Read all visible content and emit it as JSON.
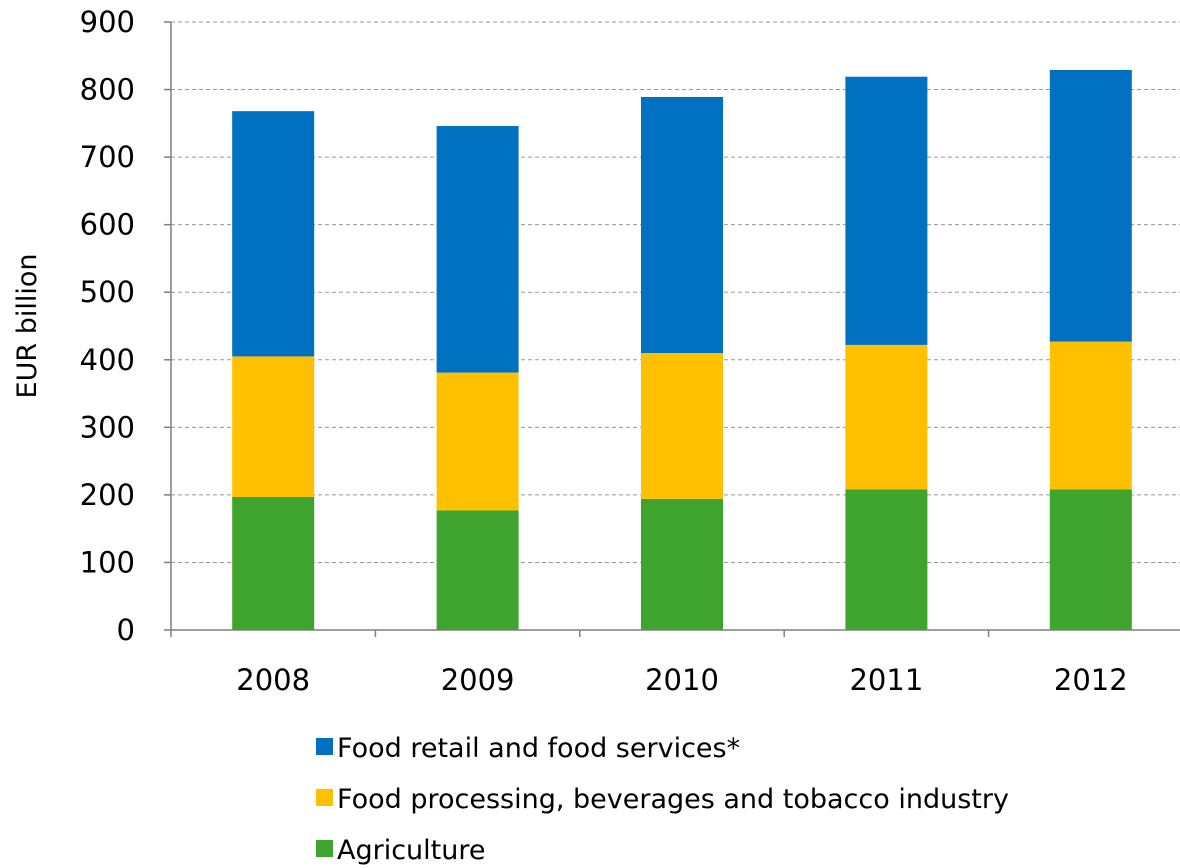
{
  "chart_data": {
    "type": "bar",
    "stacked": true,
    "title": "",
    "xlabel": "",
    "ylabel": "EUR billion",
    "ylim": [
      0,
      900
    ],
    "yticks": [
      0,
      100,
      200,
      300,
      400,
      500,
      600,
      700,
      800,
      900
    ],
    "categories": [
      "2008",
      "2009",
      "2010",
      "2011",
      "2012"
    ],
    "grid": true,
    "legend_position": "bottom",
    "series": [
      {
        "name": "Agriculture",
        "color": "#3fa42d",
        "values": [
          197,
          177,
          194,
          208,
          208
        ]
      },
      {
        "name": "Food processing, beverages and tobacco industry",
        "color": "#ffc000",
        "values": [
          208,
          204,
          216,
          214,
          219
        ]
      },
      {
        "name": "Food retail and food services*",
        "color": "#0070c0",
        "values": [
          363,
          365,
          379,
          397,
          402
        ]
      }
    ],
    "legend_order": [
      "Food retail and food services*",
      "Food processing, beverages and tobacco industry",
      "Agriculture"
    ]
  }
}
